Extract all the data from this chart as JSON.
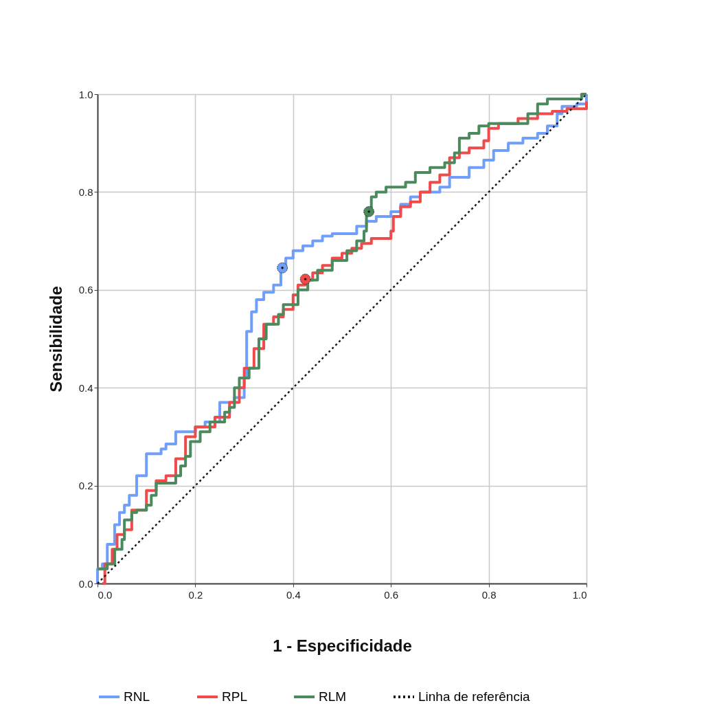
{
  "chart_data": {
    "type": "step",
    "xlabel": "1 - Especificidade",
    "ylabel": "Sensibilidade",
    "xlim": [
      0,
      1
    ],
    "ylim": [
      0,
      1
    ],
    "xticks": [
      {
        "value": 0,
        "label": "0.0"
      },
      {
        "value": 0.2,
        "label": "0.2"
      },
      {
        "value": 0.4,
        "label": "0.4"
      },
      {
        "value": 0.6,
        "label": "0.6"
      },
      {
        "value": 0.8,
        "label": "0.8"
      },
      {
        "value": 1,
        "label": "1.0"
      }
    ],
    "yticks": [
      {
        "value": 0,
        "label": "0.0"
      },
      {
        "value": 0.2,
        "label": "0.2"
      },
      {
        "value": 0.4,
        "label": "0.4"
      },
      {
        "value": 0.6,
        "label": "0.6"
      },
      {
        "value": 0.8,
        "label": "0.8"
      },
      {
        "value": 1,
        "label": "1.0"
      }
    ],
    "grid": true,
    "legend": "bottom",
    "line_style": "solid",
    "marker": "none",
    "series": [
      {
        "name": "RNL",
        "color": "#6f9ffa",
        "x": [
          0,
          0,
          0.01,
          0.02,
          0.035,
          0.045,
          0.055,
          0.065,
          0.08,
          0.1,
          0.13,
          0.14,
          0.16,
          0.2,
          0.22,
          0.25,
          0.28,
          0.3,
          0.305,
          0.315,
          0.325,
          0.34,
          0.36,
          0.375,
          0.385,
          0.4,
          0.42,
          0.44,
          0.46,
          0.48,
          0.53,
          0.55,
          0.57,
          0.6,
          0.62,
          0.64,
          0.66,
          0.7,
          0.72,
          0.76,
          0.79,
          0.81,
          0.84,
          0.87,
          0.9,
          0.92,
          0.94,
          0.95,
          0.98,
          1
        ],
        "values": [
          0,
          0.03,
          0.04,
          0.08,
          0.12,
          0.145,
          0.16,
          0.18,
          0.22,
          0.265,
          0.275,
          0.285,
          0.31,
          0.32,
          0.33,
          0.37,
          0.38,
          0.42,
          0.515,
          0.555,
          0.58,
          0.595,
          0.61,
          0.645,
          0.665,
          0.68,
          0.69,
          0.7,
          0.71,
          0.715,
          0.73,
          0.74,
          0.75,
          0.76,
          0.775,
          0.79,
          0.8,
          0.81,
          0.83,
          0.85,
          0.865,
          0.885,
          0.9,
          0.91,
          0.92,
          0.935,
          0.96,
          0.975,
          0.98,
          1
        ]
      },
      {
        "name": "RPL",
        "color": "#f04a4a",
        "x": [
          0.01,
          0.015,
          0.03,
          0.04,
          0.055,
          0.07,
          0.1,
          0.12,
          0.14,
          0.16,
          0.18,
          0.2,
          0.24,
          0.27,
          0.29,
          0.3,
          0.32,
          0.34,
          0.36,
          0.38,
          0.4,
          0.41,
          0.425,
          0.44,
          0.46,
          0.48,
          0.5,
          0.52,
          0.54,
          0.56,
          0.6,
          0.605,
          0.62,
          0.64,
          0.66,
          0.68,
          0.7,
          0.72,
          0.74,
          0.76,
          0.79,
          0.8,
          0.82,
          0.86,
          0.9,
          0.93,
          0.96,
          1
        ],
        "values": [
          0,
          0.04,
          0.07,
          0.1,
          0.11,
          0.15,
          0.19,
          0.21,
          0.22,
          0.255,
          0.3,
          0.32,
          0.34,
          0.37,
          0.4,
          0.44,
          0.48,
          0.53,
          0.545,
          0.56,
          0.59,
          0.61,
          0.62,
          0.635,
          0.65,
          0.665,
          0.675,
          0.685,
          0.695,
          0.705,
          0.72,
          0.75,
          0.77,
          0.78,
          0.8,
          0.82,
          0.835,
          0.87,
          0.88,
          0.89,
          0.905,
          0.93,
          0.94,
          0.95,
          0.96,
          0.965,
          0.97,
          0.985
        ]
      },
      {
        "name": "RLM",
        "color": "#4a8a5c",
        "x": [
          0,
          0.02,
          0.035,
          0.05,
          0.055,
          0.07,
          0.08,
          0.1,
          0.11,
          0.12,
          0.16,
          0.17,
          0.18,
          0.19,
          0.21,
          0.23,
          0.26,
          0.27,
          0.28,
          0.29,
          0.31,
          0.33,
          0.345,
          0.37,
          0.38,
          0.41,
          0.43,
          0.45,
          0.48,
          0.51,
          0.53,
          0.545,
          0.55,
          0.56,
          0.57,
          0.59,
          0.63,
          0.65,
          0.68,
          0.71,
          0.73,
          0.74,
          0.76,
          0.78,
          0.8,
          0.88,
          0.9,
          0.92,
          0.99,
          1
        ],
        "values": [
          0.03,
          0.04,
          0.07,
          0.09,
          0.13,
          0.145,
          0.15,
          0.16,
          0.18,
          0.205,
          0.22,
          0.24,
          0.26,
          0.29,
          0.31,
          0.33,
          0.35,
          0.36,
          0.4,
          0.42,
          0.44,
          0.5,
          0.53,
          0.55,
          0.57,
          0.6,
          0.62,
          0.64,
          0.66,
          0.68,
          0.7,
          0.72,
          0.76,
          0.79,
          0.8,
          0.81,
          0.82,
          0.84,
          0.85,
          0.86,
          0.88,
          0.91,
          0.92,
          0.935,
          0.94,
          0.96,
          0.98,
          0.99,
          1,
          1
        ]
      },
      {
        "name": "Linha de referência",
        "color": "#1a1a1a",
        "type": "line",
        "line_style": "dotted",
        "x": [
          0,
          1
        ],
        "values": [
          0,
          1
        ]
      },
      {
        "color": "#6f9ffa",
        "type": "scatter",
        "marker": "circle",
        "x": [
          0.378
        ],
        "values": [
          0.645
        ]
      },
      {
        "color": "#f04a4a",
        "type": "scatter",
        "marker": "circle",
        "x": [
          0.425
        ],
        "values": [
          0.622
        ]
      },
      {
        "color": "#4a8a5c",
        "type": "scatter",
        "marker": "circle",
        "x": [
          0.555
        ],
        "values": [
          0.76
        ]
      }
    ]
  }
}
